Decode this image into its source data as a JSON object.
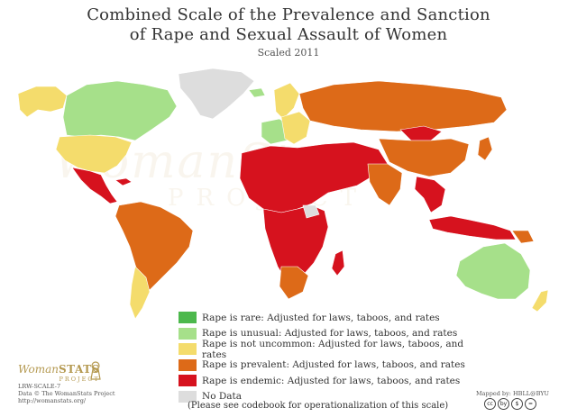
{
  "title_line1": "Combined Scale of the Prevalence and Sanction",
  "title_line2": "of Rape and Sexual Assault of Women",
  "subtitle": "Scaled 2011",
  "legend": [
    {
      "label": "Rape is rare: Adjusted for laws, taboos, and rates",
      "color": "#4cb84c"
    },
    {
      "label": "Rape is unusual: Adjusted for laws, taboos, and rates",
      "color": "#a6e08a"
    },
    {
      "label": "Rape is not uncommon: Adjusted for laws, taboos, and rates",
      "color": "#f4dc6c"
    },
    {
      "label": "Rape is prevalent: Adjusted for laws, taboos, and rates",
      "color": "#dd6a18"
    },
    {
      "label": "Rape is endemic: Adjusted for laws, taboos, and rates",
      "color": "#d6121e"
    },
    {
      "label": "No Data",
      "color": "#dddddd"
    }
  ],
  "note": "(Please see codebook for operationalization of this scale)",
  "logo_woman": "Woman",
  "logo_stats": "STATS",
  "logo_project": "PROJECT",
  "credits": [
    "LRW-SCALE-7",
    "Data © The WomanStats Project",
    "http://womanstats.org/"
  ],
  "mapped_by": "Mapped by: HBLL@BYU",
  "cc_icons": [
    "cc",
    "by",
    "$",
    "="
  ],
  "watermark": "WomanStats",
  "watermark_project": "PROJECT",
  "colors": {
    "rare": "#4cb84c",
    "unusual": "#a6e08a",
    "not_uncommon": "#f4dc6c",
    "prevalent": "#dd6a18",
    "endemic": "#d6121e",
    "nodata": "#dddddd"
  }
}
